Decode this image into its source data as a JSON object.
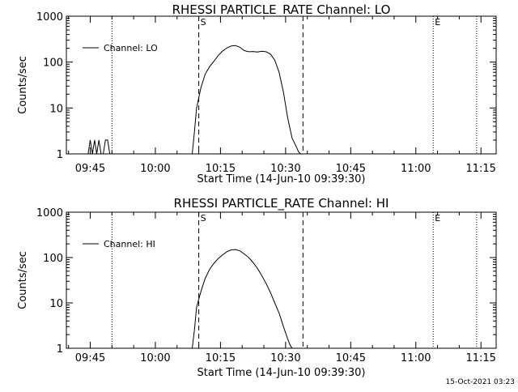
{
  "footer": {
    "timestamp": "15-Oct-2021 03:23"
  },
  "chart_data": [
    {
      "type": "line",
      "title": "RHESSI PARTICLE_RATE Channel: LO",
      "xlabel": "Start Time (14-Jun-10 09:39:30)",
      "ylabel": "Counts/sec",
      "xscale": "time-minutes-since-09:39:30",
      "yscale": "log",
      "xlim": [
        0,
        99
      ],
      "ylim": [
        1,
        1000
      ],
      "xticks": [
        {
          "value": 5.5,
          "label": "09:45"
        },
        {
          "value": 20.5,
          "label": "10:00"
        },
        {
          "value": 35.5,
          "label": "10:15"
        },
        {
          "value": 50.5,
          "label": "10:30"
        },
        {
          "value": 65.5,
          "label": "10:45"
        },
        {
          "value": 80.5,
          "label": "11:00"
        },
        {
          "value": 95.5,
          "label": "11:15"
        }
      ],
      "yticks": [
        {
          "value": 1,
          "label": "1"
        },
        {
          "value": 10,
          "label": "10"
        },
        {
          "value": 100,
          "label": "100"
        },
        {
          "value": 1000,
          "label": "1000"
        }
      ],
      "legend": {
        "position": "top-left",
        "label": "Channel: LO"
      },
      "markers": [
        {
          "x": 10.5,
          "style": "dotted",
          "label": ""
        },
        {
          "x": 30.5,
          "style": "dashed",
          "label": "S"
        },
        {
          "x": 54.5,
          "style": "dashed",
          "label": ""
        },
        {
          "x": 84.5,
          "style": "dotted",
          "label": "E"
        },
        {
          "x": 94.5,
          "style": "dotted",
          "label": ""
        }
      ],
      "series": [
        {
          "name": "Channel: LO",
          "x": [
            5,
            5.5,
            6,
            6.5,
            7,
            7.5,
            8,
            8.5,
            9,
            9.5,
            10,
            29,
            29.5,
            30,
            31,
            32,
            33,
            34,
            35,
            36,
            37,
            38,
            39,
            40,
            41,
            42,
            43,
            44,
            45,
            46,
            47,
            48,
            49,
            50,
            51,
            52,
            53,
            53.5,
            54
          ],
          "values": [
            1,
            2,
            1,
            2,
            1,
            2,
            1,
            1,
            2,
            2,
            1,
            1,
            3,
            10,
            28,
            55,
            80,
            105,
            140,
            175,
            205,
            225,
            230,
            210,
            178,
            168,
            170,
            165,
            172,
            168,
            150,
            110,
            60,
            22,
            6,
            2.2,
            1.4,
            1.1,
            1
          ]
        }
      ]
    },
    {
      "type": "line",
      "title": "RHESSI PARTICLE_RATE Channel: HI",
      "xlabel": "Start Time (14-Jun-10 09:39:30)",
      "ylabel": "Counts/sec",
      "xscale": "time-minutes-since-09:39:30",
      "yscale": "log",
      "xlim": [
        0,
        99
      ],
      "ylim": [
        1,
        1000
      ],
      "xticks": [
        {
          "value": 5.5,
          "label": "09:45"
        },
        {
          "value": 20.5,
          "label": "10:00"
        },
        {
          "value": 35.5,
          "label": "10:15"
        },
        {
          "value": 50.5,
          "label": "10:30"
        },
        {
          "value": 65.5,
          "label": "10:45"
        },
        {
          "value": 80.5,
          "label": "11:00"
        },
        {
          "value": 95.5,
          "label": "11:15"
        }
      ],
      "yticks": [
        {
          "value": 1,
          "label": "1"
        },
        {
          "value": 10,
          "label": "10"
        },
        {
          "value": 100,
          "label": "100"
        },
        {
          "value": 1000,
          "label": "1000"
        }
      ],
      "legend": {
        "position": "top-left",
        "label": "Channel: HI"
      },
      "markers": [
        {
          "x": 10.5,
          "style": "dotted",
          "label": ""
        },
        {
          "x": 30.5,
          "style": "dashed",
          "label": "S"
        },
        {
          "x": 54.5,
          "style": "dashed",
          "label": ""
        },
        {
          "x": 84.5,
          "style": "dotted",
          "label": "E"
        },
        {
          "x": 94.5,
          "style": "dotted",
          "label": ""
        }
      ],
      "series": [
        {
          "name": "Channel: HI",
          "x": [
            29,
            29.5,
            30,
            31,
            32,
            33,
            34,
            35,
            36,
            37,
            38,
            39,
            40,
            41,
            42,
            43,
            44,
            45,
            46,
            47,
            48,
            49,
            50,
            51,
            51.5,
            52
          ],
          "values": [
            1,
            2.5,
            8,
            18,
            35,
            55,
            75,
            95,
            115,
            135,
            148,
            150,
            140,
            120,
            100,
            78,
            58,
            40,
            27,
            17,
            10,
            6,
            3,
            1.6,
            1.2,
            1
          ]
        }
      ]
    }
  ]
}
